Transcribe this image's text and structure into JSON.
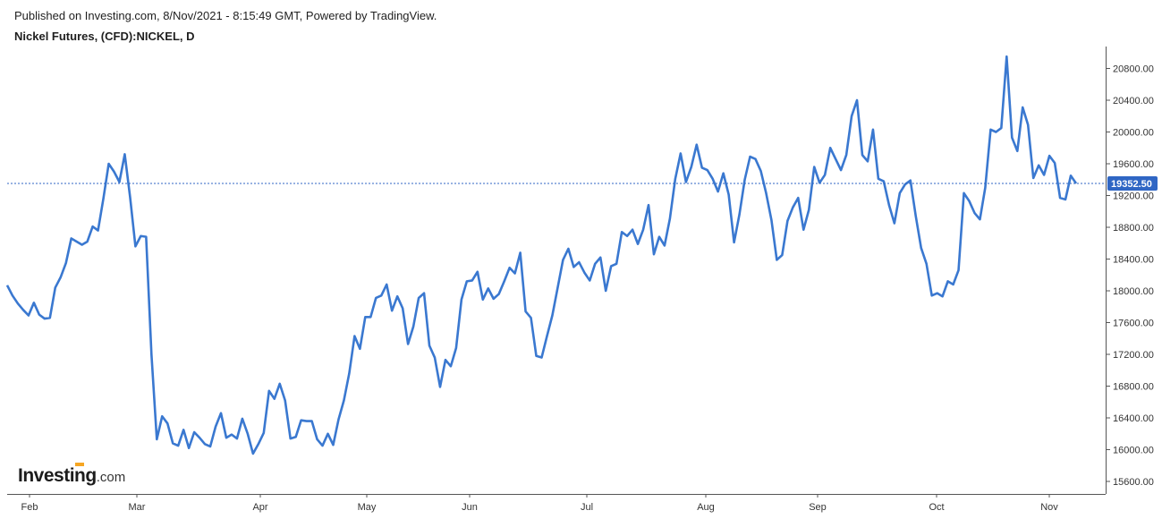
{
  "header": {
    "published": "Published on Investing.com, 8/Nov/2021 - 8:15:49 GMT, Powered by TradingView.",
    "title": "Nickel Futures, (CFD):NICKEL, D"
  },
  "logo": {
    "brand": "Investing",
    "domain": ".com"
  },
  "colors": {
    "line": "#3a78d0",
    "last_label_bg": "#2f66c4",
    "axis": "#555555"
  },
  "chart_data": {
    "type": "line",
    "series": [
      {
        "values": [
          18070,
          17940,
          17840,
          17760,
          17690,
          17850,
          17700,
          17650,
          17660,
          18040,
          18170,
          18350,
          18660,
          18620,
          18580,
          18620,
          18810,
          18760,
          19160,
          19600,
          19500,
          19370,
          19720,
          19180,
          18560,
          18690,
          18680,
          17200,
          16130,
          16420,
          16330,
          16080,
          16050,
          16250,
          16020,
          16220,
          16150,
          16070,
          16040,
          16290,
          16460,
          16150,
          16190,
          16140,
          16390,
          16200,
          15950,
          16070,
          16210,
          16740,
          16640,
          16830,
          16620,
          16140,
          16160,
          16370,
          16360,
          16360,
          16130,
          16050,
          16200,
          16060,
          16380,
          16620,
          16960,
          17430,
          17270,
          17670,
          17670,
          17910,
          17940,
          18080,
          17750,
          17930,
          17780,
          17330,
          17550,
          17910,
          17970,
          17310,
          17160,
          16790,
          17130,
          17050,
          17280,
          17890,
          18120,
          18130,
          18240,
          17890,
          18030,
          17900,
          17960,
          18120,
          18290,
          18220,
          18480,
          17740,
          17660,
          17180,
          17160,
          17430,
          17690,
          18040,
          18390,
          18530,
          18300,
          18360,
          18230,
          18130,
          18340,
          18420,
          18000,
          18310,
          18340,
          18740,
          18690,
          18770,
          18590,
          18770,
          19080,
          18460,
          18680,
          18570,
          18910,
          19410,
          19730,
          19370,
          19560,
          19840,
          19550,
          19520,
          19410,
          19250,
          19480,
          19210,
          18610,
          18960,
          19400,
          19690,
          19660,
          19510,
          19230,
          18890,
          18390,
          18450,
          18880,
          19050,
          19170,
          18770,
          19020,
          19560,
          19360,
          19460,
          19800,
          19660,
          19520,
          19710,
          20200,
          20400,
          19710,
          19630,
          20030,
          19410,
          19380,
          19080,
          18850,
          19230,
          19340,
          19390,
          18940,
          18540,
          18340,
          17940,
          17970,
          17930,
          18120,
          18080,
          18260,
          19230,
          19130,
          18980,
          18900,
          19300,
          20030,
          20000,
          20050,
          20950,
          19930,
          19760,
          20310,
          20090,
          19420,
          19580,
          19460,
          19700,
          19610,
          19170,
          19150,
          19450,
          19352.5
        ]
      }
    ],
    "x_labels": [
      "Feb",
      "Mar",
      "Apr",
      "May",
      "Jun",
      "Jul",
      "Aug",
      "Sep",
      "Oct",
      "Nov"
    ],
    "y_ticks": [
      "15600.00",
      "16000.00",
      "16400.00",
      "16800.00",
      "17200.00",
      "17600.00",
      "18000.00",
      "18400.00",
      "18800.00",
      "19200.00",
      "19600.00",
      "20000.00",
      "20400.00",
      "20800.00"
    ],
    "last_value": 19352.5,
    "last_value_label": "19352.50",
    "ylim": [
      15200,
      21200
    ],
    "grid": false
  }
}
